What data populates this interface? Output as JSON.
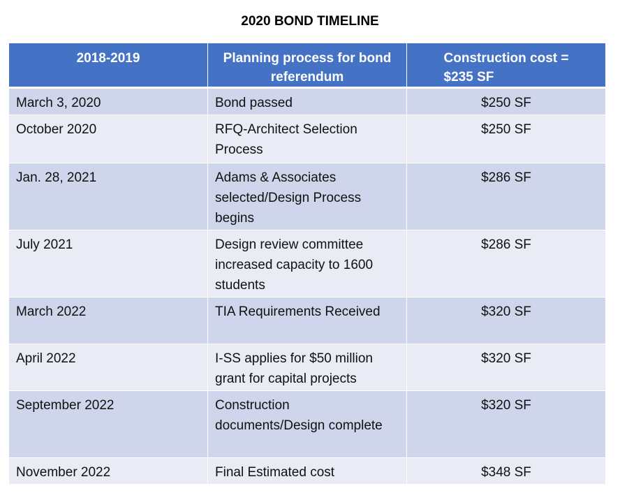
{
  "title": "2020 BOND TIMELINE",
  "header": {
    "col1": "2018-2019",
    "col2": "Planning process for bond referendum",
    "col3_line1": "Construction cost =",
    "col3_line2": "$235 SF"
  },
  "colors": {
    "header_bg": "#4472c4",
    "row_dark": "#cfd5ea",
    "row_light": "#e9ebf5"
  },
  "rows": [
    {
      "date": "March 3, 2020",
      "event": "Bond passed",
      "cost": "$250 SF"
    },
    {
      "date": "October 2020",
      "event": "RFQ-Architect Selection Process",
      "cost": "$250 SF"
    },
    {
      "date": "Jan. 28, 2021",
      "event": "Adams & Associates selected/Design Process begins",
      "cost": "$286 SF"
    },
    {
      "date": "July 2021",
      "event": "Design review committee increased capacity to 1600 students",
      "cost": "$286 SF"
    },
    {
      "date": "March 2022",
      "event": "TIA Requirements Received",
      "cost": "$320 SF"
    },
    {
      "date": "April 2022",
      "event": "I-SS applies for $50 million grant for capital projects",
      "cost": "$320 SF"
    },
    {
      "date": "September 2022",
      "event": "Construction documents/Design complete",
      "cost": "$320 SF"
    },
    {
      "date": "November 2022",
      "event": "Final Estimated cost",
      "cost": "$348 SF"
    }
  ]
}
